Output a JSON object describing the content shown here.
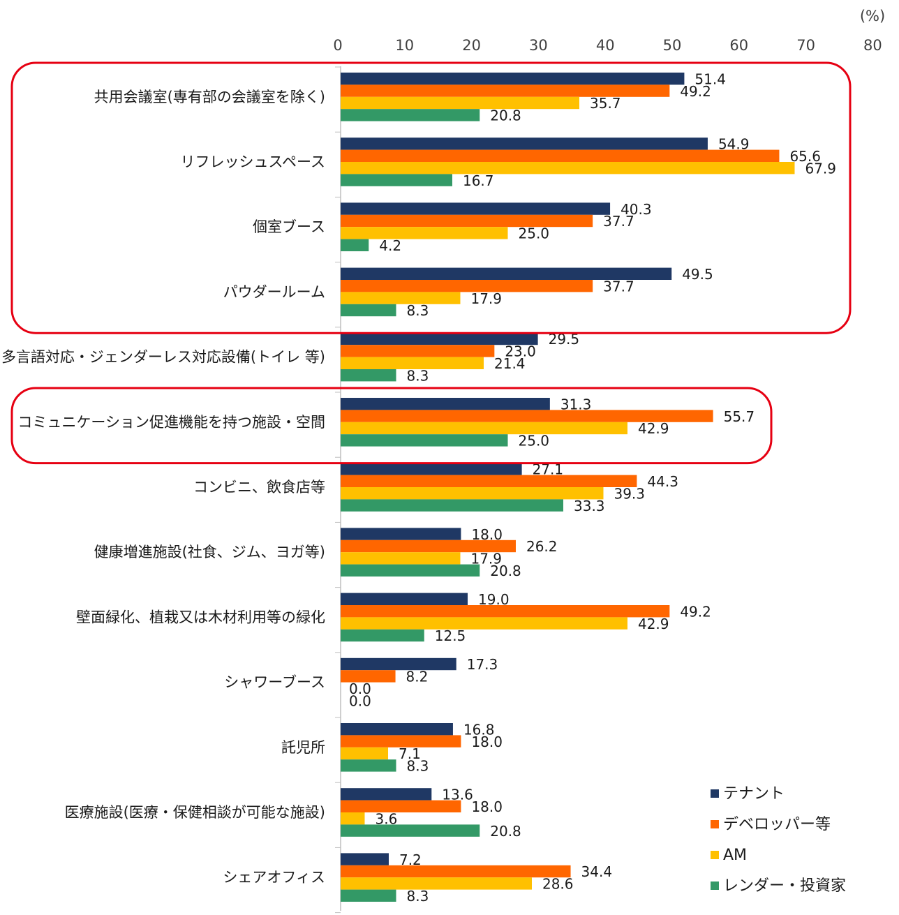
{
  "chart_data": {
    "type": "bar",
    "orientation": "horizontal",
    "unit": "(%)",
    "xlim": [
      0,
      80
    ],
    "ticks": [
      "0",
      "10",
      "20",
      "30",
      "40",
      "50",
      "60",
      "70",
      "80"
    ],
    "categories": [
      "共用会議室(専有部の会議室を除く)",
      "リフレッシュスペース",
      "個室ブース",
      "パウダールーム",
      "多言語対応・ジェンダーレス対応設備(トイレ 等)",
      "コミュニケーション促進機能を持つ施設・空間",
      "コンビニ、飲食店等",
      "健康増進施設(社食、ジム、ヨガ等)",
      "壁面緑化、植栽又は木材利用等の緑化",
      "シャワーブース",
      "託児所",
      "医療施設(医療・保健相談が可能な施設)",
      "シェアオフィス"
    ],
    "series": [
      {
        "name": "テナント",
        "color": "#1f3864",
        "values": [
          51.4,
          54.9,
          40.3,
          49.5,
          29.5,
          31.3,
          27.1,
          18.0,
          19.0,
          17.3,
          16.8,
          13.6,
          7.2
        ],
        "labels": [
          "51.4",
          "54.9",
          "40.3",
          "49.5",
          "29.5",
          "31.3",
          "27.1",
          "18.0",
          "19.0",
          "17.3",
          "16.8",
          "13.6",
          "7.2"
        ]
      },
      {
        "name": "デベロッパー等",
        "color": "#ff6600",
        "values": [
          49.2,
          65.6,
          37.7,
          37.7,
          23.0,
          55.7,
          44.3,
          26.2,
          49.2,
          8.2,
          18.0,
          18.0,
          34.4
        ],
        "labels": [
          "49.2",
          "65.6",
          "37.7",
          "37.7",
          "23.0",
          "55.7",
          "44.3",
          "26.2",
          "49.2",
          "8.2",
          "18.0",
          "18.0",
          "34.4"
        ]
      },
      {
        "name": "AM",
        "color": "#ffc000",
        "values": [
          35.7,
          67.9,
          25.0,
          17.9,
          21.4,
          42.9,
          39.3,
          17.9,
          42.9,
          0.0,
          7.1,
          3.6,
          28.6
        ],
        "labels": [
          "35.7",
          "67.9",
          "25.0",
          "17.9",
          "21.4",
          "42.9",
          "39.3",
          "17.9",
          "42.9",
          "0.0",
          "7.1",
          "3.6",
          "28.6"
        ]
      },
      {
        "name": "レンダー・投資家",
        "color": "#339966",
        "values": [
          20.8,
          16.7,
          4.2,
          8.3,
          8.3,
          25.0,
          33.3,
          20.8,
          12.5,
          0.0,
          8.3,
          20.8,
          8.3
        ],
        "labels": [
          "20.8",
          "16.7",
          "4.2",
          "8.3",
          "8.3",
          "25.0",
          "33.3",
          "20.8",
          "12.5",
          "0.0",
          "8.3",
          "20.8",
          "8.3"
        ]
      }
    ],
    "highlight_groups": [
      [
        0,
        3
      ],
      [
        5,
        5
      ]
    ],
    "highlight_color": "#e60012",
    "legend_position": "bottom-right",
    "grid": true
  }
}
